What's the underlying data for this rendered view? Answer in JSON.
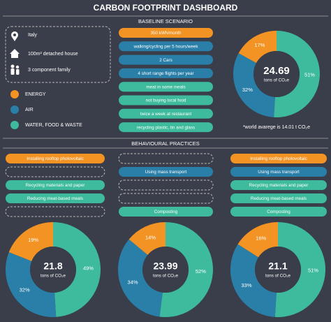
{
  "header": {
    "title": "CARBON FOOTPRINT DASHBOARD"
  },
  "baseline": {
    "section_title": "BASELINE SCENARIO",
    "profile": [
      "Italy",
      "100m² detached house",
      "3 component family"
    ],
    "legend": [
      {
        "label": "ENERGY",
        "color": "#f39323"
      },
      {
        "label": "AIR",
        "color": "#2a7fa8"
      },
      {
        "label": "WATER, FOOD & WASTE",
        "color": "#3dbb9c"
      }
    ],
    "habits": [
      {
        "text": "350 kWh/month",
        "color": "#f39323"
      },
      {
        "text": "walking/cycling per 5 hours/week",
        "color": "#2a7fa8"
      },
      {
        "text": "2 Cars",
        "color": "#2a7fa8"
      },
      {
        "text": "4 short range flights per year",
        "color": "#2a7fa8"
      },
      {
        "text": "meat in some meals",
        "color": "#3dbb9c"
      },
      {
        "text": "not buying local food",
        "color": "#3dbb9c"
      },
      {
        "text": "twice a week at restaurant",
        "color": "#3dbb9c"
      },
      {
        "text": "recycling plastic, tin and glass",
        "color": "#3dbb9c"
      }
    ],
    "footprint": {
      "total": 24.69,
      "unit": "tons of CO₂e",
      "values": [
        17,
        32,
        51
      ],
      "value_labels": [
        "17%",
        "32%",
        "51%"
      ]
    },
    "note": "*world avarege is 14.01 t CO₂e"
  },
  "behavioural": {
    "section_title": "BEHAVIOURAL PRACTICES",
    "scenarios": [
      {
        "practices": [
          {
            "text": "Installing rooftop photovoltaic",
            "color": "#f39323"
          },
          null,
          {
            "text": "Recycling materials and paper",
            "color": "#3dbb9c"
          },
          {
            "text": "Reducing meat-based meals",
            "color": "#3dbb9c"
          },
          null
        ],
        "footprint": {
          "total": 21.8,
          "unit": "tons of CO₂e",
          "values": [
            19,
            32,
            49
          ],
          "value_labels": [
            "19%",
            "32%",
            "49%"
          ]
        }
      },
      {
        "practices": [
          null,
          {
            "text": "Using mass transport",
            "color": "#2a7fa8"
          },
          null,
          null,
          {
            "text": "Composting",
            "color": "#3dbb9c"
          }
        ],
        "footprint": {
          "total": 23.99,
          "unit": "tons of CO₂e",
          "values": [
            14,
            34,
            52
          ],
          "value_labels": [
            "14%",
            "34%",
            "52%"
          ]
        }
      },
      {
        "practices": [
          {
            "text": "Installing rooftop photovoltaic",
            "color": "#f39323"
          },
          {
            "text": "Using mass transport",
            "color": "#2a7fa8"
          },
          {
            "text": "Recycling materials and paper",
            "color": "#3dbb9c"
          },
          {
            "text": "Reducing meat-based meals",
            "color": "#3dbb9c"
          },
          {
            "text": "Composting",
            "color": "#3dbb9c"
          }
        ],
        "footprint": {
          "total": 21.1,
          "unit": "tons of CO₂e",
          "values": [
            16,
            33,
            51
          ],
          "value_labels": [
            "16%",
            "33%",
            "51%"
          ]
        }
      }
    ]
  }
}
